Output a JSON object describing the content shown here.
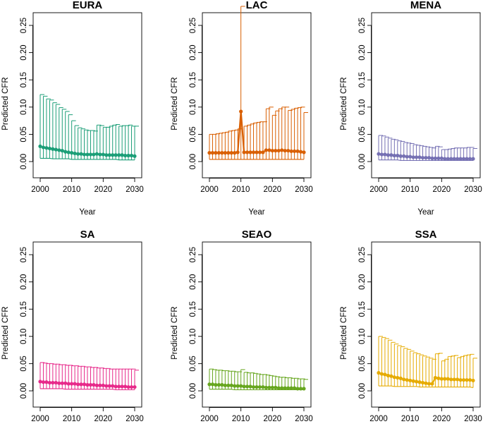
{
  "chart_data": {
    "type": "line",
    "layout": "2x3 grid of small multiples",
    "shared": {
      "xlabel": "Year",
      "ylabel": "Predicted CFR",
      "xlim": [
        2000,
        2030
      ],
      "ylim": [
        0,
        0.25
      ],
      "x_ticks": [
        2000,
        2010,
        2020,
        2030
      ],
      "y_ticks": [
        0.0,
        0.05,
        0.1,
        0.15,
        0.2,
        0.25
      ],
      "y_tick_labels": [
        "0.00",
        "0.05",
        "0.10",
        "0.15",
        "0.20",
        "0.25"
      ],
      "x_tick_labels": [
        "2000",
        "2010",
        "2020",
        "2030"
      ],
      "error_bars": "95% interval per year (upper cap drawn; lower bound as line)"
    },
    "panels": [
      {
        "title": "EURA",
        "color": "#1b9e77",
        "x": [
          2000,
          2001,
          2002,
          2003,
          2004,
          2005,
          2006,
          2007,
          2008,
          2009,
          2010,
          2011,
          2012,
          2013,
          2014,
          2015,
          2016,
          2017,
          2018,
          2019,
          2020,
          2021,
          2022,
          2023,
          2024,
          2025,
          2026,
          2027,
          2028,
          2029,
          2030
        ],
        "y": [
          0.028,
          0.026,
          0.025,
          0.024,
          0.023,
          0.022,
          0.021,
          0.02,
          0.018,
          0.017,
          0.016,
          0.015,
          0.014,
          0.014,
          0.013,
          0.013,
          0.013,
          0.013,
          0.014,
          0.013,
          0.013,
          0.012,
          0.012,
          0.012,
          0.012,
          0.012,
          0.012,
          0.011,
          0.011,
          0.011,
          0.01
        ],
        "upper": [
          0.123,
          0.12,
          0.115,
          0.113,
          0.108,
          0.105,
          0.099,
          0.096,
          0.092,
          0.086,
          0.075,
          0.066,
          0.062,
          0.06,
          0.058,
          0.057,
          0.057,
          0.056,
          0.067,
          0.066,
          0.063,
          0.063,
          0.065,
          0.067,
          0.068,
          0.065,
          0.066,
          0.066,
          0.067,
          0.065,
          0.065
        ],
        "lower": [
          0.006,
          0.006,
          0.006,
          0.006,
          0.005,
          0.005,
          0.005,
          0.005,
          0.005,
          0.005,
          0.004,
          0.004,
          0.004,
          0.004,
          0.004,
          0.004,
          0.004,
          0.004,
          0.004,
          0.004,
          0.004,
          0.004,
          0.004,
          0.004,
          0.004,
          0.003,
          0.003,
          0.003,
          0.003,
          0.003,
          0.003
        ]
      },
      {
        "title": "LAC",
        "color": "#d95f02",
        "x": [
          2000,
          2001,
          2002,
          2003,
          2004,
          2005,
          2006,
          2007,
          2008,
          2009,
          2010,
          2011,
          2012,
          2013,
          2014,
          2015,
          2016,
          2017,
          2018,
          2019,
          2020,
          2021,
          2022,
          2023,
          2024,
          2025,
          2026,
          2027,
          2028,
          2029,
          2030
        ],
        "y": [
          0.016,
          0.016,
          0.016,
          0.016,
          0.016,
          0.016,
          0.016,
          0.016,
          0.016,
          0.017,
          0.092,
          0.017,
          0.017,
          0.017,
          0.017,
          0.017,
          0.017,
          0.017,
          0.021,
          0.021,
          0.02,
          0.02,
          0.02,
          0.021,
          0.02,
          0.02,
          0.019,
          0.019,
          0.019,
          0.018,
          0.017
        ],
        "upper": [
          0.05,
          0.05,
          0.051,
          0.052,
          0.053,
          0.054,
          0.056,
          0.057,
          0.058,
          0.06,
          0.285,
          0.065,
          0.067,
          0.069,
          0.071,
          0.072,
          0.073,
          0.073,
          0.097,
          0.1,
          0.085,
          0.093,
          0.097,
          0.1,
          0.1,
          0.094,
          0.096,
          0.098,
          0.099,
          0.1,
          0.09
        ],
        "lower": [
          0.004,
          0.004,
          0.004,
          0.004,
          0.004,
          0.004,
          0.004,
          0.004,
          0.004,
          0.004,
          0.004,
          0.004,
          0.004,
          0.004,
          0.004,
          0.004,
          0.004,
          0.004,
          0.004,
          0.004,
          0.004,
          0.004,
          0.004,
          0.004,
          0.004,
          0.004,
          0.004,
          0.004,
          0.004,
          0.004,
          0.004
        ]
      },
      {
        "title": "MENA",
        "color": "#7570b3",
        "x": [
          2000,
          2001,
          2002,
          2003,
          2004,
          2005,
          2006,
          2007,
          2008,
          2009,
          2010,
          2011,
          2012,
          2013,
          2014,
          2015,
          2016,
          2017,
          2018,
          2019,
          2020,
          2021,
          2022,
          2023,
          2024,
          2025,
          2026,
          2027,
          2028,
          2029,
          2030
        ],
        "y": [
          0.014,
          0.013,
          0.013,
          0.012,
          0.012,
          0.011,
          0.011,
          0.01,
          0.01,
          0.009,
          0.009,
          0.008,
          0.008,
          0.008,
          0.007,
          0.007,
          0.007,
          0.006,
          0.006,
          0.006,
          0.006,
          0.005,
          0.005,
          0.005,
          0.005,
          0.005,
          0.005,
          0.005,
          0.005,
          0.005,
          0.005
        ],
        "upper": [
          0.048,
          0.047,
          0.045,
          0.043,
          0.041,
          0.04,
          0.038,
          0.037,
          0.035,
          0.034,
          0.033,
          0.031,
          0.03,
          0.029,
          0.028,
          0.027,
          0.026,
          0.025,
          0.028,
          0.027,
          0.022,
          0.022,
          0.023,
          0.024,
          0.025,
          0.025,
          0.025,
          0.025,
          0.026,
          0.026,
          0.024
        ],
        "lower": [
          0.003,
          0.003,
          0.003,
          0.003,
          0.003,
          0.003,
          0.003,
          0.002,
          0.002,
          0.002,
          0.002,
          0.002,
          0.002,
          0.002,
          0.002,
          0.002,
          0.002,
          0.002,
          0.002,
          0.002,
          0.002,
          0.002,
          0.002,
          0.002,
          0.002,
          0.002,
          0.002,
          0.002,
          0.002,
          0.002,
          0.002
        ]
      },
      {
        "title": "SA",
        "color": "#e7298a",
        "x": [
          2000,
          2001,
          2002,
          2003,
          2004,
          2005,
          2006,
          2007,
          2008,
          2009,
          2010,
          2011,
          2012,
          2013,
          2014,
          2015,
          2016,
          2017,
          2018,
          2019,
          2020,
          2021,
          2022,
          2023,
          2024,
          2025,
          2026,
          2027,
          2028,
          2029,
          2030
        ],
        "y": [
          0.017,
          0.016,
          0.016,
          0.015,
          0.015,
          0.015,
          0.014,
          0.014,
          0.014,
          0.013,
          0.013,
          0.013,
          0.012,
          0.012,
          0.012,
          0.011,
          0.011,
          0.011,
          0.01,
          0.01,
          0.01,
          0.009,
          0.009,
          0.009,
          0.008,
          0.008,
          0.008,
          0.008,
          0.007,
          0.007,
          0.007
        ],
        "upper": [
          0.052,
          0.051,
          0.05,
          0.05,
          0.049,
          0.049,
          0.048,
          0.048,
          0.047,
          0.047,
          0.046,
          0.046,
          0.045,
          0.045,
          0.044,
          0.044,
          0.043,
          0.043,
          0.042,
          0.042,
          0.041,
          0.041,
          0.04,
          0.04,
          0.04,
          0.04,
          0.04,
          0.04,
          0.04,
          0.04,
          0.038
        ],
        "lower": [
          0.004,
          0.004,
          0.004,
          0.004,
          0.004,
          0.004,
          0.004,
          0.004,
          0.003,
          0.003,
          0.003,
          0.003,
          0.003,
          0.003,
          0.003,
          0.003,
          0.003,
          0.003,
          0.003,
          0.003,
          0.003,
          0.003,
          0.003,
          0.003,
          0.002,
          0.002,
          0.002,
          0.002,
          0.002,
          0.002,
          0.002
        ]
      },
      {
        "title": "SEAO",
        "color": "#66a61e",
        "x": [
          2000,
          2001,
          2002,
          2003,
          2004,
          2005,
          2006,
          2007,
          2008,
          2009,
          2010,
          2011,
          2012,
          2013,
          2014,
          2015,
          2016,
          2017,
          2018,
          2019,
          2020,
          2021,
          2022,
          2023,
          2024,
          2025,
          2026,
          2027,
          2028,
          2029,
          2030
        ],
        "y": [
          0.012,
          0.012,
          0.011,
          0.011,
          0.011,
          0.01,
          0.01,
          0.01,
          0.009,
          0.009,
          0.009,
          0.008,
          0.008,
          0.008,
          0.007,
          0.007,
          0.007,
          0.007,
          0.006,
          0.006,
          0.006,
          0.006,
          0.005,
          0.005,
          0.005,
          0.005,
          0.005,
          0.005,
          0.004,
          0.004,
          0.004
        ],
        "upper": [
          0.04,
          0.039,
          0.038,
          0.038,
          0.037,
          0.037,
          0.036,
          0.036,
          0.035,
          0.035,
          0.039,
          0.034,
          0.033,
          0.033,
          0.032,
          0.031,
          0.03,
          0.03,
          0.029,
          0.028,
          0.027,
          0.026,
          0.025,
          0.025,
          0.024,
          0.024,
          0.023,
          0.023,
          0.022,
          0.022,
          0.021
        ],
        "lower": [
          0.003,
          0.003,
          0.003,
          0.003,
          0.003,
          0.003,
          0.003,
          0.003,
          0.002,
          0.002,
          0.002,
          0.002,
          0.002,
          0.002,
          0.002,
          0.002,
          0.002,
          0.002,
          0.002,
          0.002,
          0.002,
          0.002,
          0.002,
          0.002,
          0.002,
          0.002,
          0.002,
          0.002,
          0.002,
          0.002,
          0.002
        ]
      },
      {
        "title": "SSA",
        "color": "#e6ab02",
        "x": [
          2000,
          2001,
          2002,
          2003,
          2004,
          2005,
          2006,
          2007,
          2008,
          2009,
          2010,
          2011,
          2012,
          2013,
          2014,
          2015,
          2016,
          2017,
          2018,
          2019,
          2020,
          2021,
          2022,
          2023,
          2024,
          2025,
          2026,
          2027,
          2028,
          2029,
          2030
        ],
        "y": [
          0.033,
          0.031,
          0.03,
          0.028,
          0.027,
          0.025,
          0.024,
          0.023,
          0.021,
          0.02,
          0.019,
          0.018,
          0.017,
          0.016,
          0.015,
          0.014,
          0.013,
          0.013,
          0.024,
          0.023,
          0.022,
          0.022,
          0.022,
          0.021,
          0.021,
          0.021,
          0.02,
          0.02,
          0.02,
          0.02,
          0.019
        ],
        "upper": [
          0.1,
          0.098,
          0.096,
          0.093,
          0.089,
          0.086,
          0.083,
          0.081,
          0.078,
          0.076,
          0.073,
          0.07,
          0.068,
          0.066,
          0.064,
          0.062,
          0.06,
          0.058,
          0.068,
          0.069,
          0.055,
          0.058,
          0.063,
          0.064,
          0.065,
          0.061,
          0.063,
          0.065,
          0.066,
          0.067,
          0.06
        ],
        "lower": [
          0.009,
          0.009,
          0.009,
          0.009,
          0.009,
          0.008,
          0.008,
          0.008,
          0.008,
          0.008,
          0.008,
          0.008,
          0.008,
          0.007,
          0.007,
          0.007,
          0.007,
          0.007,
          0.007,
          0.007,
          0.007,
          0.007,
          0.007,
          0.007,
          0.007,
          0.007,
          0.007,
          0.007,
          0.007,
          0.007,
          0.006
        ]
      }
    ]
  }
}
